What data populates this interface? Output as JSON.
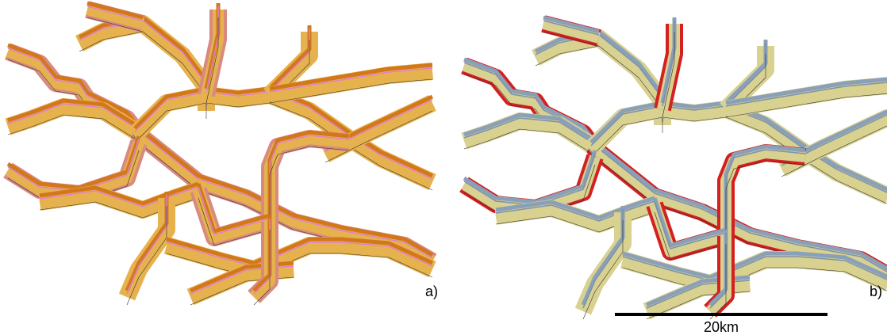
{
  "panels": [
    {
      "label": "a)"
    },
    {
      "label": "b)"
    }
  ],
  "scale_bar": {
    "label": "20km"
  }
}
